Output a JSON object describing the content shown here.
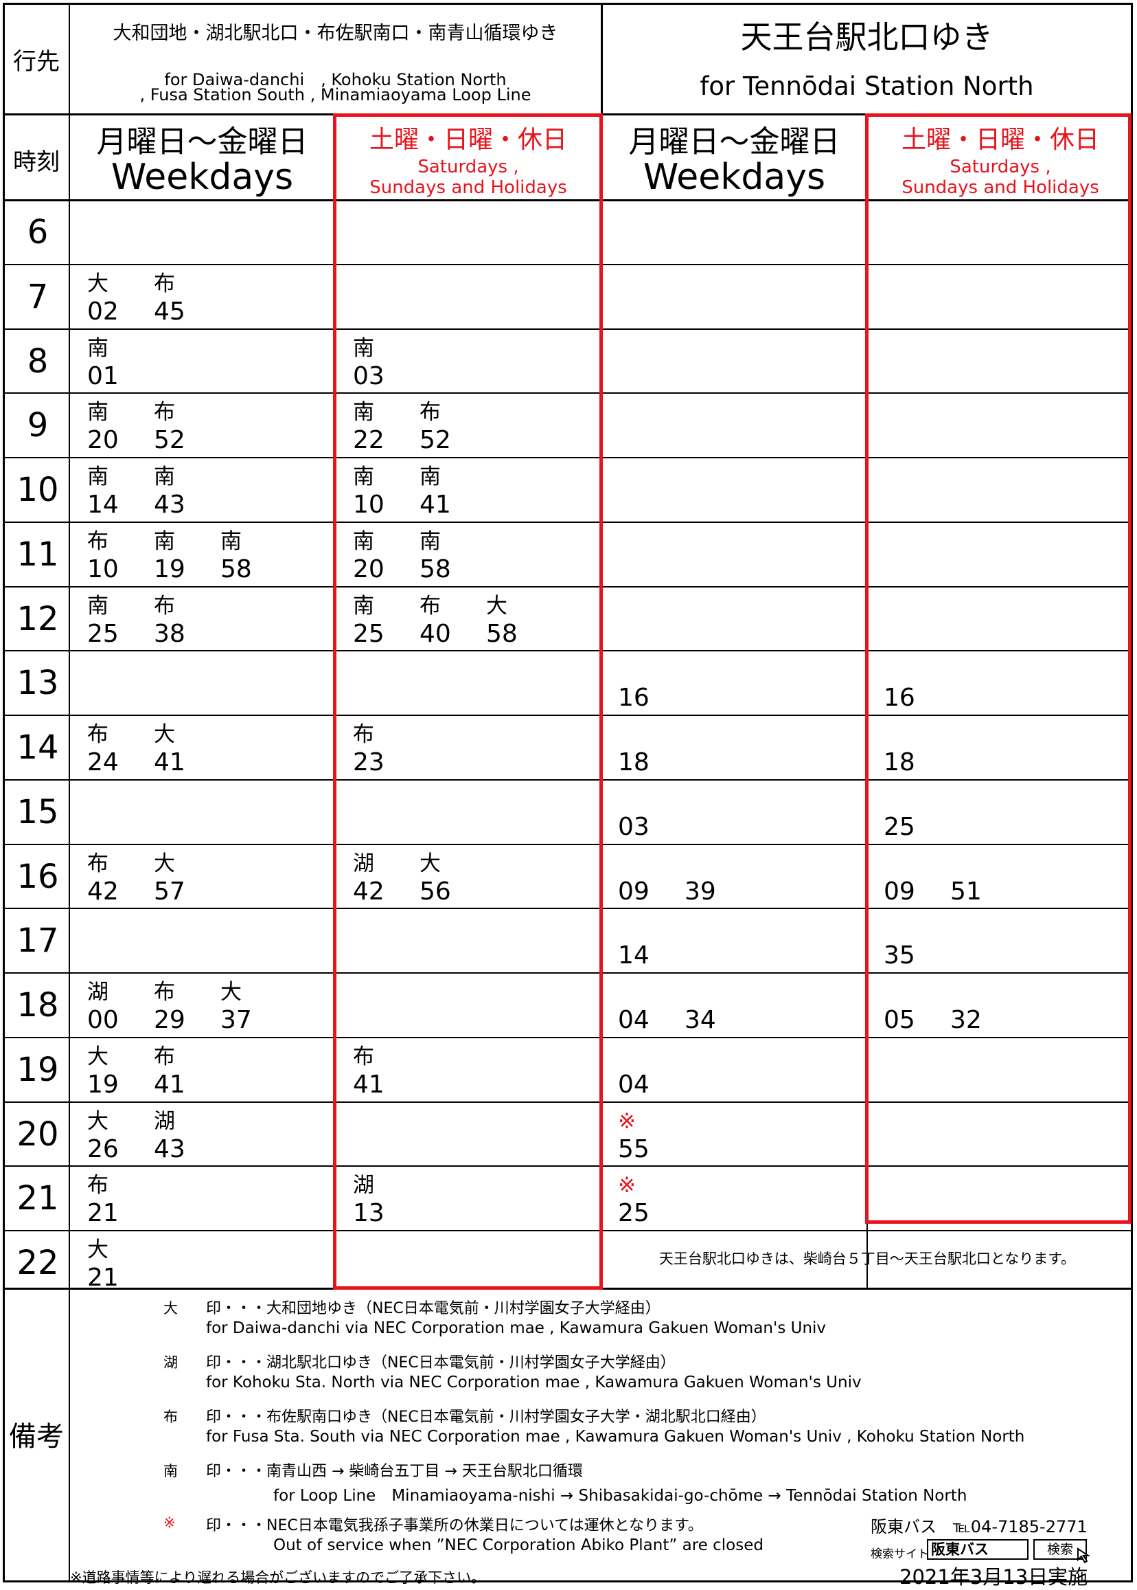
{
  "header": {
    "destination_label": "行先",
    "time_label": "時刻",
    "remarks_label": "備考",
    "left_dest_jp": "大和団地・湖北駅北口・布佐駅南口・南青山循環ゆき",
    "left_dest_en_1": "for Daiwa-danchi　, Kohoku Station North",
    "left_dest_en_2": ", Fusa Station South , Minamiaoyama Loop Line",
    "right_dest_jp": "天王台駅北口ゆき",
    "right_dest_en": "for Tennōdai Station North"
  },
  "day_types": {
    "weekday_jp": "月曜日～金曜日",
    "weekday_en": "Weekdays",
    "holiday_jp": "土曜・日曜・休日",
    "holiday_en_1": "Saturdays ,",
    "holiday_en_2": "Sundays and Holidays"
  },
  "hours": [
    "6",
    "7",
    "8",
    "9",
    "10",
    "11",
    "12",
    "13",
    "14",
    "15",
    "16",
    "17",
    "18",
    "19",
    "20",
    "21",
    "22"
  ],
  "timetable": {
    "left_weekday": [
      [],
      [
        {
          "k": "大",
          "m": "02"
        },
        {
          "k": "布",
          "m": "45"
        }
      ],
      [
        {
          "k": "南",
          "m": "01"
        }
      ],
      [
        {
          "k": "南",
          "m": "20"
        },
        {
          "k": "布",
          "m": "52"
        }
      ],
      [
        {
          "k": "南",
          "m": "14"
        },
        {
          "k": "南",
          "m": "43"
        }
      ],
      [
        {
          "k": "布",
          "m": "10"
        },
        {
          "k": "南",
          "m": "19"
        },
        {
          "k": "南",
          "m": "58"
        }
      ],
      [
        {
          "k": "南",
          "m": "25"
        },
        {
          "k": "布",
          "m": "38"
        }
      ],
      [],
      [
        {
          "k": "布",
          "m": "24"
        },
        {
          "k": "大",
          "m": "41"
        }
      ],
      [],
      [
        {
          "k": "布",
          "m": "42"
        },
        {
          "k": "大",
          "m": "57"
        }
      ],
      [],
      [
        {
          "k": "湖",
          "m": "00"
        },
        {
          "k": "布",
          "m": "29"
        },
        {
          "k": "大",
          "m": "37"
        }
      ],
      [
        {
          "k": "大",
          "m": "19"
        },
        {
          "k": "布",
          "m": "41"
        }
      ],
      [
        {
          "k": "大",
          "m": "26"
        },
        {
          "k": "湖",
          "m": "43"
        }
      ],
      [
        {
          "k": "布",
          "m": "21"
        }
      ],
      [
        {
          "k": "大",
          "m": "21"
        }
      ]
    ],
    "left_holiday": [
      [],
      [],
      [
        {
          "k": "南",
          "m": "03"
        }
      ],
      [
        {
          "k": "南",
          "m": "22"
        },
        {
          "k": "布",
          "m": "52"
        }
      ],
      [
        {
          "k": "南",
          "m": "10"
        },
        {
          "k": "南",
          "m": "41"
        }
      ],
      [
        {
          "k": "南",
          "m": "20"
        },
        {
          "k": "南",
          "m": "58"
        }
      ],
      [
        {
          "k": "南",
          "m": "25"
        },
        {
          "k": "布",
          "m": "40"
        },
        {
          "k": "大",
          "m": "58"
        }
      ],
      [],
      [
        {
          "k": "布",
          "m": "23"
        }
      ],
      [],
      [
        {
          "k": "湖",
          "m": "42"
        },
        {
          "k": "大",
          "m": "56"
        }
      ],
      [],
      [],
      [
        {
          "k": "布",
          "m": "41"
        }
      ],
      [],
      [
        {
          "k": "湖",
          "m": "13"
        }
      ],
      []
    ],
    "right_weekday": [
      [],
      [],
      [],
      [],
      [],
      [],
      [],
      [
        {
          "k": "",
          "m": "16"
        }
      ],
      [
        {
          "k": "",
          "m": "18"
        }
      ],
      [
        {
          "k": "",
          "m": "03"
        }
      ],
      [
        {
          "k": "",
          "m": "09"
        },
        {
          "k": "",
          "m": "39"
        }
      ],
      [
        {
          "k": "",
          "m": "14"
        }
      ],
      [
        {
          "k": "",
          "m": "04"
        },
        {
          "k": "",
          "m": "34"
        }
      ],
      [
        {
          "k": "",
          "m": "04"
        }
      ],
      [
        {
          "k": "※",
          "m": "55"
        }
      ],
      [
        {
          "k": "※",
          "m": "25"
        }
      ],
      []
    ],
    "right_holiday": [
      [],
      [],
      [],
      [],
      [],
      [],
      [],
      [
        {
          "k": "",
          "m": "16"
        }
      ],
      [
        {
          "k": "",
          "m": "18"
        }
      ],
      [
        {
          "k": "",
          "m": "25"
        }
      ],
      [
        {
          "k": "",
          "m": "09"
        },
        {
          "k": "",
          "m": "51"
        }
      ],
      [
        {
          "k": "",
          "m": "35"
        }
      ],
      [
        {
          "k": "",
          "m": "05"
        },
        {
          "k": "",
          "m": "32"
        }
      ],
      [],
      [],
      [],
      []
    ]
  },
  "tennodai_note": "天王台駅北口ゆきは、柴崎台５丁目～天王台駅北口となります。",
  "notes": [
    {
      "symbol": "大",
      "jp": "印・・・大和団地ゆき（NEC日本電気前・川村学園女子大学経由）",
      "en": "for Daiwa-danchi via NEC Corporation mae , Kawamura Gakuen Woman's Univ"
    },
    {
      "symbol": "湖",
      "jp": "印・・・湖北駅北口ゆき（NEC日本電気前・川村学園女子大学経由）",
      "en": "for Kohoku Sta. North via NEC Corporation mae , Kawamura Gakuen Woman's Univ"
    },
    {
      "symbol": "布",
      "jp": "印・・・布佐駅南口ゆき（NEC日本電気前・川村学園女子大学・湖北駅北口経由）",
      "en": "for Fusa Sta. South via NEC Corporation mae , Kawamura Gakuen Woman's Univ , Kohoku Station North"
    },
    {
      "symbol": "南",
      "jp": "印・・・南青山西 → 柴崎台五丁目 → 天王台駅北口循環",
      "en": "for Loop Line　Minamiaoyama-nishi → Shibasakidai-go-chōme → Tennōdai Station North"
    },
    {
      "symbol": "※",
      "jp": "印・・・NEC日本電気我孫子事業所の休業日については運休となります。",
      "en": "Out of service when ”NEC Corporation Abiko Plant” are closed"
    }
  ],
  "footer": {
    "disclaimer": "※道路事情等により遅れる場合がございますのでご了承下さい。",
    "company_phone": "阪東バス　℡04-7185-2771",
    "search_label": "検索サイト",
    "search_value": "阪東バス",
    "search_button": "検索",
    "effective_date": "2021年3月13日実施"
  },
  "colors": {
    "accent_red": "#e8141c",
    "line": "#000000"
  }
}
